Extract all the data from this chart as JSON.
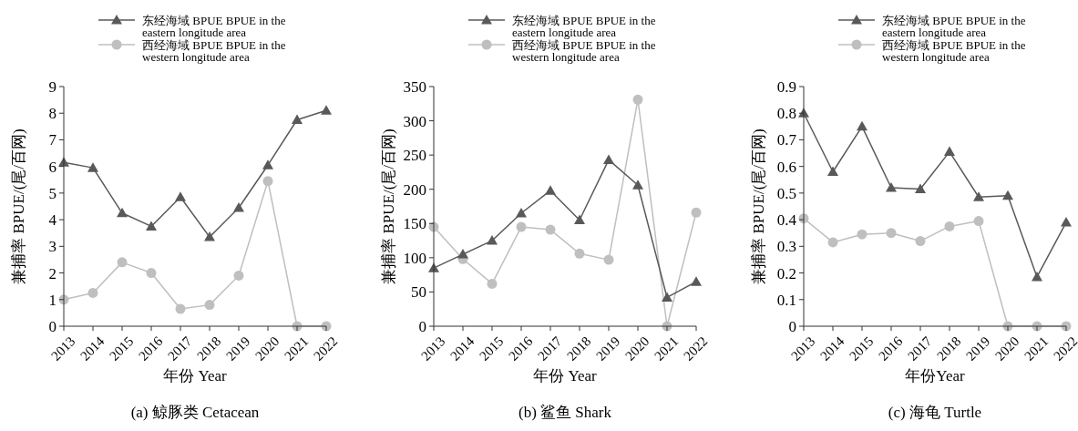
{
  "chart_data": [
    {
      "type": "line",
      "title": "(a) 鲸豚类 Cetacean",
      "xlabel": "年份 Year",
      "ylabel": "兼捕率 BPUE/(尾/百网)",
      "categories": [
        "2013",
        "2014",
        "2015",
        "2016",
        "2017",
        "2018",
        "2019",
        "2020",
        "2021",
        "2022"
      ],
      "ylim": [
        0,
        9
      ],
      "yticks": [
        0,
        1,
        2,
        3,
        4,
        5,
        6,
        7,
        8,
        9
      ],
      "legend": "top",
      "grid": false,
      "series": [
        {
          "name": "东经海域 BPUE BPUE in the eastern longitude area",
          "color": "#595959",
          "marker": "triangle",
          "values": [
            6.15,
            5.95,
            4.25,
            3.75,
            4.85,
            3.35,
            4.45,
            6.05,
            7.75,
            8.1
          ]
        },
        {
          "name": "西经海域 BPUE BPUE in the western longitude area",
          "color": "#bfbfbf",
          "marker": "circle",
          "values": [
            1.0,
            1.25,
            2.4,
            2.0,
            0.65,
            0.8,
            1.9,
            5.45,
            0,
            0
          ]
        }
      ]
    },
    {
      "type": "line",
      "title": "(b) 鲨鱼 Shark",
      "xlabel": "年份 Year",
      "ylabel": "兼捕率 BPUE/(尾/百网)",
      "categories": [
        "2013",
        "2014",
        "2015",
        "2016",
        "2017",
        "2018",
        "2019",
        "2020",
        "2021",
        "2022"
      ],
      "ylim": [
        0,
        350
      ],
      "yticks": [
        0,
        50,
        100,
        150,
        200,
        250,
        300,
        350
      ],
      "legend": "top",
      "grid": false,
      "series": [
        {
          "name": "东经海域 BPUE BPUE in the eastern longitude area",
          "color": "#595959",
          "marker": "triangle",
          "values": [
            85,
            105,
            125,
            165,
            198,
            155,
            243,
            206,
            42,
            65
          ]
        },
        {
          "name": "西经海域 BPUE BPUE in the western longitude area",
          "color": "#bfbfbf",
          "marker": "circle",
          "values": [
            145,
            98,
            62,
            145,
            141,
            106,
            97,
            331,
            0,
            166
          ]
        }
      ]
    },
    {
      "type": "line",
      "title": "(c) 海龟 Turtle",
      "xlabel": "年份Year",
      "ylabel": "兼捕率 BPUE/(尾/百网)",
      "categories": [
        "2013",
        "2014",
        "2015",
        "2016",
        "2017",
        "2018",
        "2019",
        "2020",
        "2021",
        "2022"
      ],
      "ylim": [
        0,
        0.9
      ],
      "yticks": [
        0,
        0.1,
        0.2,
        0.3,
        0.4,
        0.5,
        0.6,
        0.7,
        0.8,
        0.9
      ],
      "legend": "top",
      "grid": false,
      "series": [
        {
          "name": "东经海域 BPUE BPUE in the eastern longitude area",
          "color": "#595959",
          "marker": "triangle",
          "values": [
            0.8,
            0.58,
            0.75,
            0.52,
            0.515,
            0.655,
            0.485,
            0.49,
            0.185,
            0.39
          ]
        },
        {
          "name": "西经海域 BPUE BPUE in the western longitude area",
          "color": "#bfbfbf",
          "marker": "circle",
          "values": [
            0.405,
            0.315,
            0.345,
            0.35,
            0.32,
            0.375,
            0.395,
            0,
            0,
            0
          ]
        }
      ]
    }
  ]
}
